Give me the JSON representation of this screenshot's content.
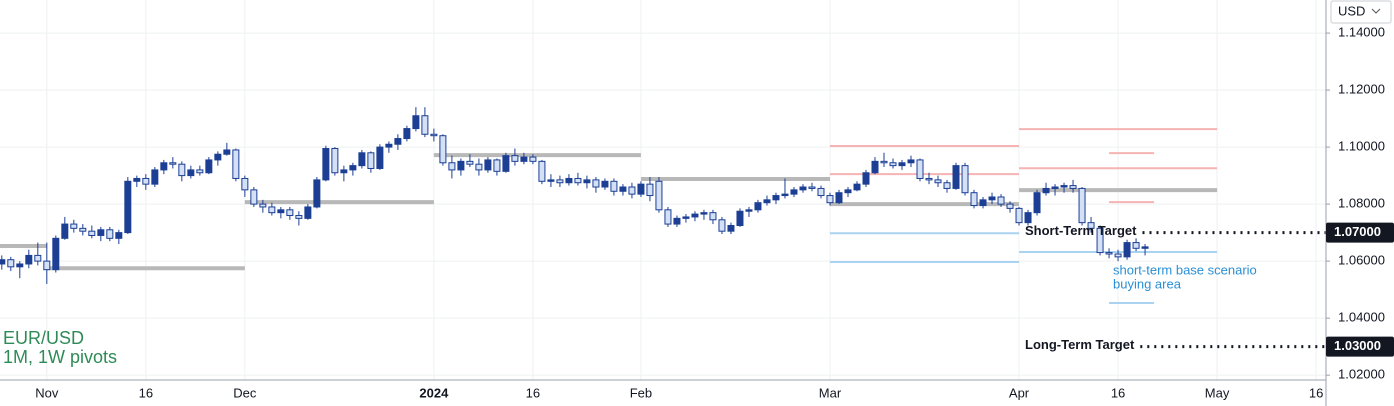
{
  "chart_data": {
    "type": "candlestick",
    "currency": "USD",
    "title": "EUR/USD",
    "subtitle": "1M, 1W pivots",
    "xlim": [
      -0.2,
      147.1
    ],
    "ylim": [
      1.0183,
      1.1516
    ],
    "grid": true,
    "up_color": "#1c3f94",
    "down_color": "#d4e0f5",
    "yticks": [
      {
        "value": 1.14,
        "label": "1.14000"
      },
      {
        "value": 1.12,
        "label": "1.12000"
      },
      {
        "value": 1.1,
        "label": "1.10000"
      },
      {
        "value": 1.08,
        "label": "1.08000"
      },
      {
        "value": 1.06,
        "label": "1.06000"
      },
      {
        "value": 1.04,
        "label": "1.04000"
      },
      {
        "value": 1.02,
        "label": "1.02000"
      }
    ],
    "xticks": [
      {
        "value": 5,
        "label": "Nov"
      },
      {
        "value": 16,
        "label": "16"
      },
      {
        "value": 27,
        "label": "Dec"
      },
      {
        "value": 48,
        "label": "2024"
      },
      {
        "value": 59,
        "label": "16"
      },
      {
        "value": 71,
        "label": "Feb"
      },
      {
        "value": 92,
        "label": "Mar"
      },
      {
        "value": 113,
        "label": "Apr"
      },
      {
        "value": 124,
        "label": "16"
      },
      {
        "value": 135,
        "label": "May"
      },
      {
        "value": 146,
        "label": "16"
      }
    ],
    "open": [
      1.059,
      1.0605,
      1.058,
      1.059,
      1.062,
      1.06,
      1.057,
      1.068,
      1.073,
      1.0715,
      1.0705,
      1.069,
      1.071,
      1.068,
      1.07,
      1.088,
      1.089,
      1.087,
      1.092,
      1.0945,
      1.094,
      1.09,
      1.092,
      1.091,
      1.0955,
      1.0975,
      1.099,
      1.089,
      1.085,
      1.08,
      1.079,
      1.077,
      1.078,
      1.076,
      1.075,
      1.079,
      1.0885,
      1.0995,
      1.091,
      1.092,
      1.0935,
      1.098,
      1.0925,
      1.1,
      1.101,
      1.103,
      1.1065,
      1.111,
      1.1045,
      1.104,
      1.0945,
      1.092,
      1.095,
      1.094,
      1.092,
      1.0955,
      1.0915,
      1.097,
      1.095,
      1.0965,
      1.095,
      1.088,
      1.0885,
      1.0875,
      1.089,
      1.0875,
      1.0885,
      1.086,
      1.088,
      1.0845,
      1.086,
      1.0835,
      1.087,
      1.088,
      1.078,
      1.073,
      1.075,
      1.0755,
      1.0765,
      1.077,
      1.0745,
      1.0705,
      1.0725,
      1.0775,
      1.078,
      1.0805,
      1.0815,
      1.083,
      1.0835,
      1.085,
      1.086,
      1.0855,
      1.083,
      1.0805,
      1.084,
      1.085,
      1.087,
      1.091,
      1.095,
      1.0945,
      1.0935,
      1.0945,
      1.0955,
      1.089,
      1.0885,
      1.0875,
      1.0855,
      1.0935,
      1.084,
      1.0795,
      1.0815,
      1.0825,
      1.08,
      1.0785,
      1.0735,
      1.077,
      1.084,
      1.0855,
      1.086,
      1.0865,
      1.0855,
      1.0735,
      1.0715,
      1.063,
      1.0625,
      1.0615,
      1.0665,
      1.0645
    ],
    "high": [
      1.062,
      1.0615,
      1.06,
      1.064,
      1.0665,
      1.0665,
      1.069,
      1.0755,
      1.0745,
      1.073,
      1.0725,
      1.072,
      1.072,
      1.071,
      1.0895,
      1.09,
      1.0905,
      1.093,
      1.0955,
      1.0965,
      1.095,
      1.0935,
      1.0935,
      1.0965,
      1.0985,
      1.1015,
      1.0995,
      1.09,
      1.086,
      1.0815,
      1.0805,
      1.079,
      1.079,
      1.0775,
      1.08,
      1.0895,
      1.1005,
      1.1,
      1.0935,
      1.0945,
      1.099,
      1.0985,
      1.101,
      1.102,
      1.1045,
      1.1075,
      1.114,
      1.114,
      1.1065,
      1.1045,
      1.097,
      1.096,
      1.0975,
      1.096,
      1.0965,
      1.096,
      1.098,
      1.0995,
      1.098,
      1.0975,
      1.0955,
      1.0905,
      1.09,
      1.0905,
      1.091,
      1.09,
      1.0895,
      1.089,
      1.089,
      1.087,
      1.0875,
      1.088,
      1.0895,
      1.0895,
      1.079,
      1.076,
      1.0765,
      1.0775,
      1.078,
      1.078,
      1.0755,
      1.0735,
      1.0785,
      1.079,
      1.0815,
      1.083,
      1.084,
      1.089,
      1.086,
      1.087,
      1.0875,
      1.0865,
      1.084,
      1.085,
      1.086,
      1.088,
      1.092,
      1.0965,
      1.098,
      1.096,
      1.0955,
      1.097,
      1.096,
      1.091,
      1.09,
      1.0885,
      1.0945,
      1.0945,
      1.085,
      1.0825,
      1.084,
      1.0835,
      1.081,
      1.079,
      1.078,
      1.085,
      1.0875,
      1.087,
      1.0875,
      1.0885,
      1.086,
      1.0755,
      1.0725,
      1.0645,
      1.064,
      1.0675,
      1.068,
      1.066
    ],
    "low": [
      1.057,
      1.0565,
      1.054,
      1.0575,
      1.0585,
      1.052,
      1.056,
      1.0675,
      1.07,
      1.069,
      1.068,
      1.067,
      1.067,
      1.066,
      1.0695,
      1.086,
      1.085,
      1.086,
      1.0905,
      1.0925,
      1.088,
      1.089,
      1.09,
      1.0905,
      1.0935,
      1.097,
      1.088,
      1.0825,
      1.079,
      1.077,
      1.076,
      1.075,
      1.0745,
      1.0725,
      1.0745,
      1.0785,
      1.088,
      1.09,
      1.088,
      1.09,
      1.0925,
      1.091,
      1.092,
      1.098,
      1.099,
      1.102,
      1.1055,
      1.1035,
      1.102,
      1.0935,
      1.089,
      1.09,
      1.093,
      1.09,
      1.091,
      1.09,
      1.091,
      1.0935,
      1.094,
      1.094,
      1.087,
      1.086,
      1.086,
      1.0865,
      1.0865,
      1.0855,
      1.084,
      1.085,
      1.083,
      1.083,
      1.082,
      1.0825,
      1.081,
      1.077,
      1.072,
      1.072,
      1.0735,
      1.074,
      1.0745,
      1.073,
      1.0695,
      1.0695,
      1.072,
      1.0755,
      1.077,
      1.0795,
      1.08,
      1.082,
      1.0825,
      1.084,
      1.0845,
      1.082,
      1.0795,
      1.08,
      1.0825,
      1.0845,
      1.086,
      1.0905,
      1.093,
      1.0925,
      1.092,
      1.093,
      1.088,
      1.087,
      1.086,
      1.084,
      1.085,
      1.083,
      1.0785,
      1.0785,
      1.08,
      1.079,
      1.077,
      1.0725,
      1.0725,
      1.076,
      1.083,
      1.083,
      1.084,
      1.084,
      1.0725,
      1.07,
      1.062,
      1.061,
      1.06,
      1.0605,
      1.0635,
      1.062
    ],
    "close": [
      1.0605,
      1.058,
      1.059,
      1.062,
      1.06,
      1.057,
      1.068,
      1.073,
      1.0715,
      1.0705,
      1.069,
      1.071,
      1.068,
      1.07,
      1.088,
      1.089,
      1.087,
      1.092,
      1.0945,
      1.094,
      1.09,
      1.092,
      1.091,
      1.0955,
      1.0975,
      1.099,
      1.089,
      1.085,
      1.08,
      1.079,
      1.077,
      1.078,
      1.076,
      1.075,
      1.079,
      1.0885,
      1.0995,
      1.091,
      1.092,
      1.0935,
      1.098,
      1.0925,
      1.1,
      1.101,
      1.103,
      1.1065,
      1.111,
      1.1045,
      1.104,
      1.0945,
      1.092,
      1.095,
      1.094,
      1.092,
      1.0955,
      1.0915,
      1.097,
      1.095,
      1.0965,
      1.095,
      1.088,
      1.0885,
      1.0875,
      1.089,
      1.0875,
      1.0885,
      1.086,
      1.088,
      1.0845,
      1.086,
      1.0835,
      1.087,
      1.083,
      1.078,
      1.073,
      1.075,
      1.0755,
      1.0765,
      1.077,
      1.0745,
      1.0705,
      1.0725,
      1.0775,
      1.078,
      1.0805,
      1.0815,
      1.083,
      1.0835,
      1.085,
      1.086,
      1.0855,
      1.083,
      1.0805,
      1.084,
      1.085,
      1.087,
      1.091,
      1.095,
      1.0945,
      1.0935,
      1.0945,
      1.0955,
      1.089,
      1.0885,
      1.0875,
      1.0855,
      1.0935,
      1.084,
      1.0795,
      1.0815,
      1.0825,
      1.08,
      1.0785,
      1.0735,
      1.077,
      1.084,
      1.0855,
      1.086,
      1.0865,
      1.0855,
      1.0735,
      1.0715,
      1.063,
      1.0625,
      1.0615,
      1.0665,
      1.0645,
      1.065
    ],
    "levels": [
      {
        "start": -0.2,
        "end": 5,
        "value": 1.0653,
        "color": "#b8b8b8"
      },
      {
        "start": 5,
        "end": 27,
        "value": 1.0575,
        "color": "#b8b8b8"
      },
      {
        "start": 27,
        "end": 48,
        "value": 1.0807,
        "color": "#b8b8b8"
      },
      {
        "start": 48,
        "end": 71,
        "value": 1.0972,
        "color": "#b8b8b8"
      },
      {
        "start": 71,
        "end": 92,
        "value": 1.0888,
        "color": "#b8b8b8"
      },
      {
        "start": 92,
        "end": 113,
        "value": 1.08,
        "color": "#b8b8b8"
      },
      {
        "start": 113,
        "end": 135,
        "value": 1.0849,
        "color": "#b8b8b8"
      },
      {
        "start": 92,
        "end": 113,
        "value": 1.1004,
        "color": "#f6b3b3"
      },
      {
        "start": 92,
        "end": 113,
        "value": 1.0905,
        "color": "#f6b3b3"
      },
      {
        "start": 92,
        "end": 113,
        "value": 1.0698,
        "color": "#a9d3f0"
      },
      {
        "start": 92,
        "end": 113,
        "value": 1.0597,
        "color": "#a9d3f0"
      },
      {
        "start": 113,
        "end": 135,
        "value": 1.1063,
        "color": "#f6b3b3"
      },
      {
        "start": 113,
        "end": 135,
        "value": 1.0926,
        "color": "#f6b3b3"
      },
      {
        "start": 113,
        "end": 135,
        "value": 1.0632,
        "color": "#a9d3f0"
      },
      {
        "start": 123,
        "end": 128,
        "value": 1.0979,
        "color": "#f6b3b3"
      },
      {
        "start": 123,
        "end": 128,
        "value": 1.0807,
        "color": "#f6b3b3"
      },
      {
        "start": 123,
        "end": 128,
        "value": 1.0453,
        "color": "#a9d3f0"
      }
    ],
    "targets": [
      {
        "text": "Short-Term Target",
        "value": 1.07,
        "label": "1.07000"
      },
      {
        "text": "Long-Term Target",
        "value": 1.03,
        "label": "1.03000"
      }
    ],
    "annotation": [
      "short-term base scenario",
      "buying area"
    ]
  }
}
